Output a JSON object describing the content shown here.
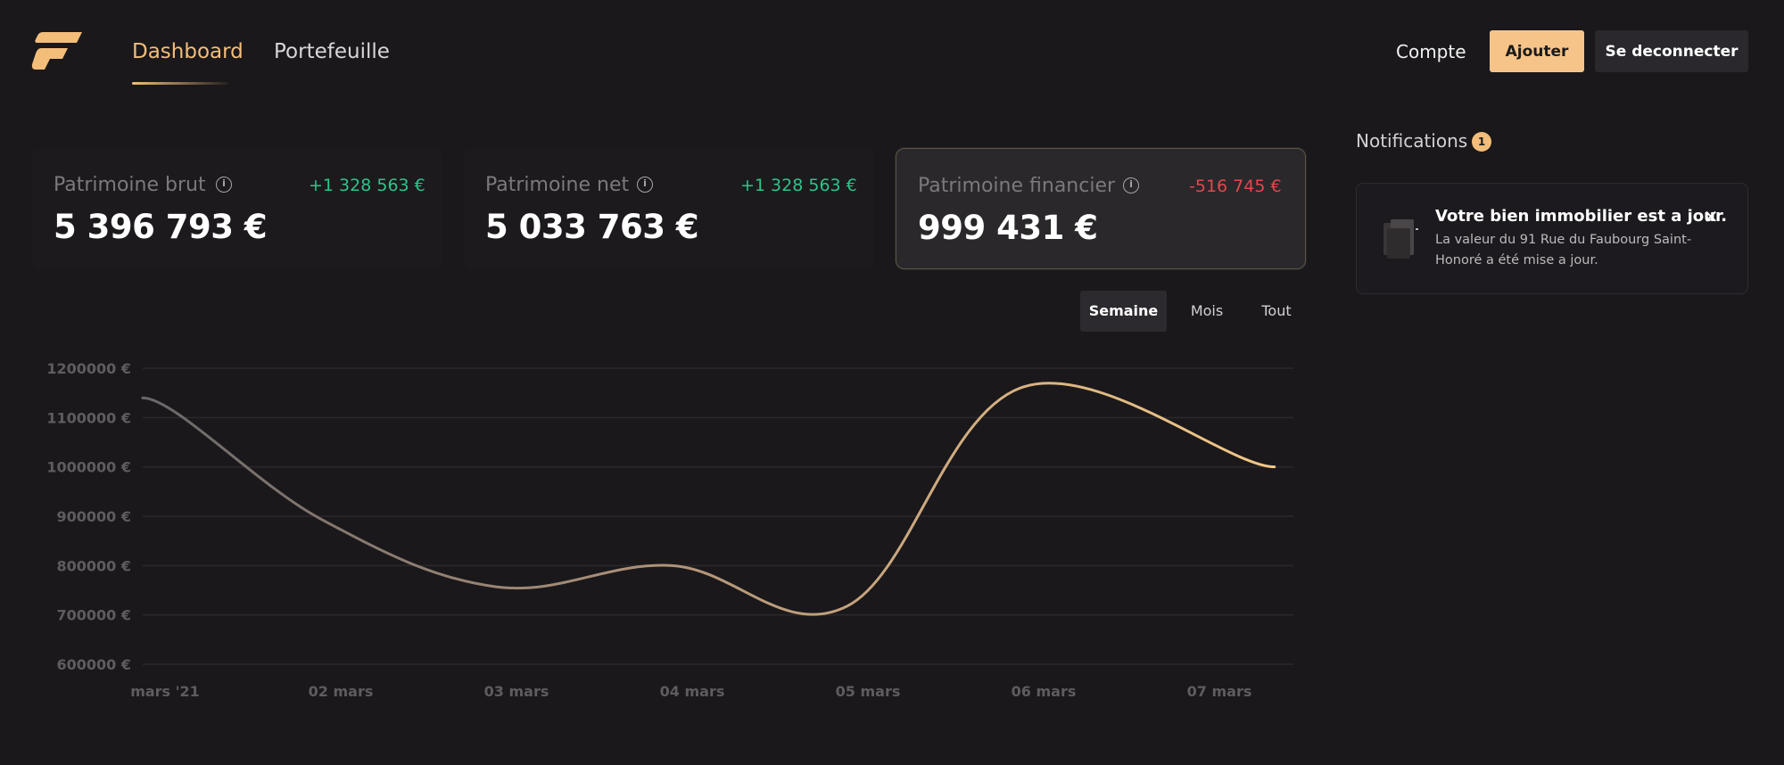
{
  "nav": {
    "tabs": [
      {
        "label": "Dashboard"
      },
      {
        "label": "Portefeuille"
      }
    ],
    "account_label": "Compte",
    "add_label": "Ajouter",
    "logout_label": "Se deconnecter"
  },
  "stats": [
    {
      "label": "Patrimoine brut",
      "change": "+1 328 563 €",
      "value": "5 396 793 €"
    },
    {
      "label": "Patrimoine net",
      "change": "+1 328 563 €",
      "value": "5 033 763 €"
    },
    {
      "label": "Patrimoine financier",
      "change": "-516 745 €",
      "value": "999 431 €"
    }
  ],
  "periods": {
    "week": "Semaine",
    "month": "Mois",
    "all": "Tout"
  },
  "notifications": {
    "title": "Notifications",
    "count": "1",
    "items": [
      {
        "title": "Votre bien immobilier est a jour.",
        "body": "La valeur du 91 Rue du Faubourg Saint-Honoré a été mise a jour."
      }
    ]
  },
  "colors": {
    "accent": "#f3be7a",
    "positive": "#2ec48a",
    "negative": "#e2484a",
    "background": "#1a181b"
  },
  "chart_data": {
    "type": "line",
    "x": [
      "mars '21",
      "02 mars",
      "03 mars",
      "04 mars",
      "05 mars",
      "06 mars",
      "07 mars"
    ],
    "y_ticks": [
      "1200000 €",
      "1100000 €",
      "1000000 €",
      "900000 €",
      "800000 €",
      "700000 €",
      "600000 €"
    ],
    "ylim": [
      600000,
      1200000
    ],
    "series": [
      {
        "points": [
          [
            0,
            1140000
          ],
          [
            1,
            895000
          ],
          [
            2,
            757000
          ],
          [
            3,
            800000
          ],
          [
            4,
            718000
          ],
          [
            5,
            1162000
          ],
          [
            6.43,
            1000000
          ]
        ]
      }
    ],
    "grid": true
  }
}
